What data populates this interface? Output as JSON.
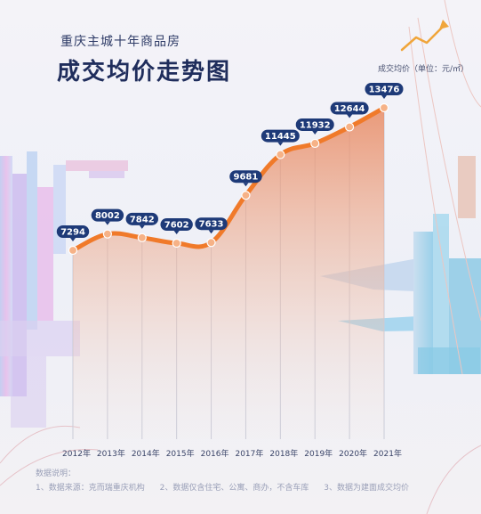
{
  "header": {
    "subtitle": "重庆主城十年商品房",
    "title": "成交均价走势图",
    "unit": "成交均价（单位：元/㎡）"
  },
  "footer": {
    "heading": "数据说明：",
    "notes": [
      "1、数据来源：克而瑞重庆机构",
      "2、数据仅含住宅、公寓、商办，不含车库",
      "3、数据为建面成交均价"
    ]
  },
  "colors": {
    "line": "#f07a2a",
    "label_bg": "#1e3a78",
    "title": "#1f2d5c"
  },
  "chart_data": {
    "type": "area",
    "categories": [
      "2012年",
      "2013年",
      "2014年",
      "2015年",
      "2016年",
      "2017年",
      "2018年",
      "2019年",
      "2020年",
      "2021年"
    ],
    "values": [
      7294,
      8002,
      7842,
      7602,
      7633,
      9681,
      11445,
      11932,
      12644,
      13476
    ],
    "title": "成交均价走势图",
    "ylabel": "成交均价（单位：元/㎡）",
    "ylim": [
      4000,
      14500
    ],
    "grid": "vertical lines at each category"
  }
}
